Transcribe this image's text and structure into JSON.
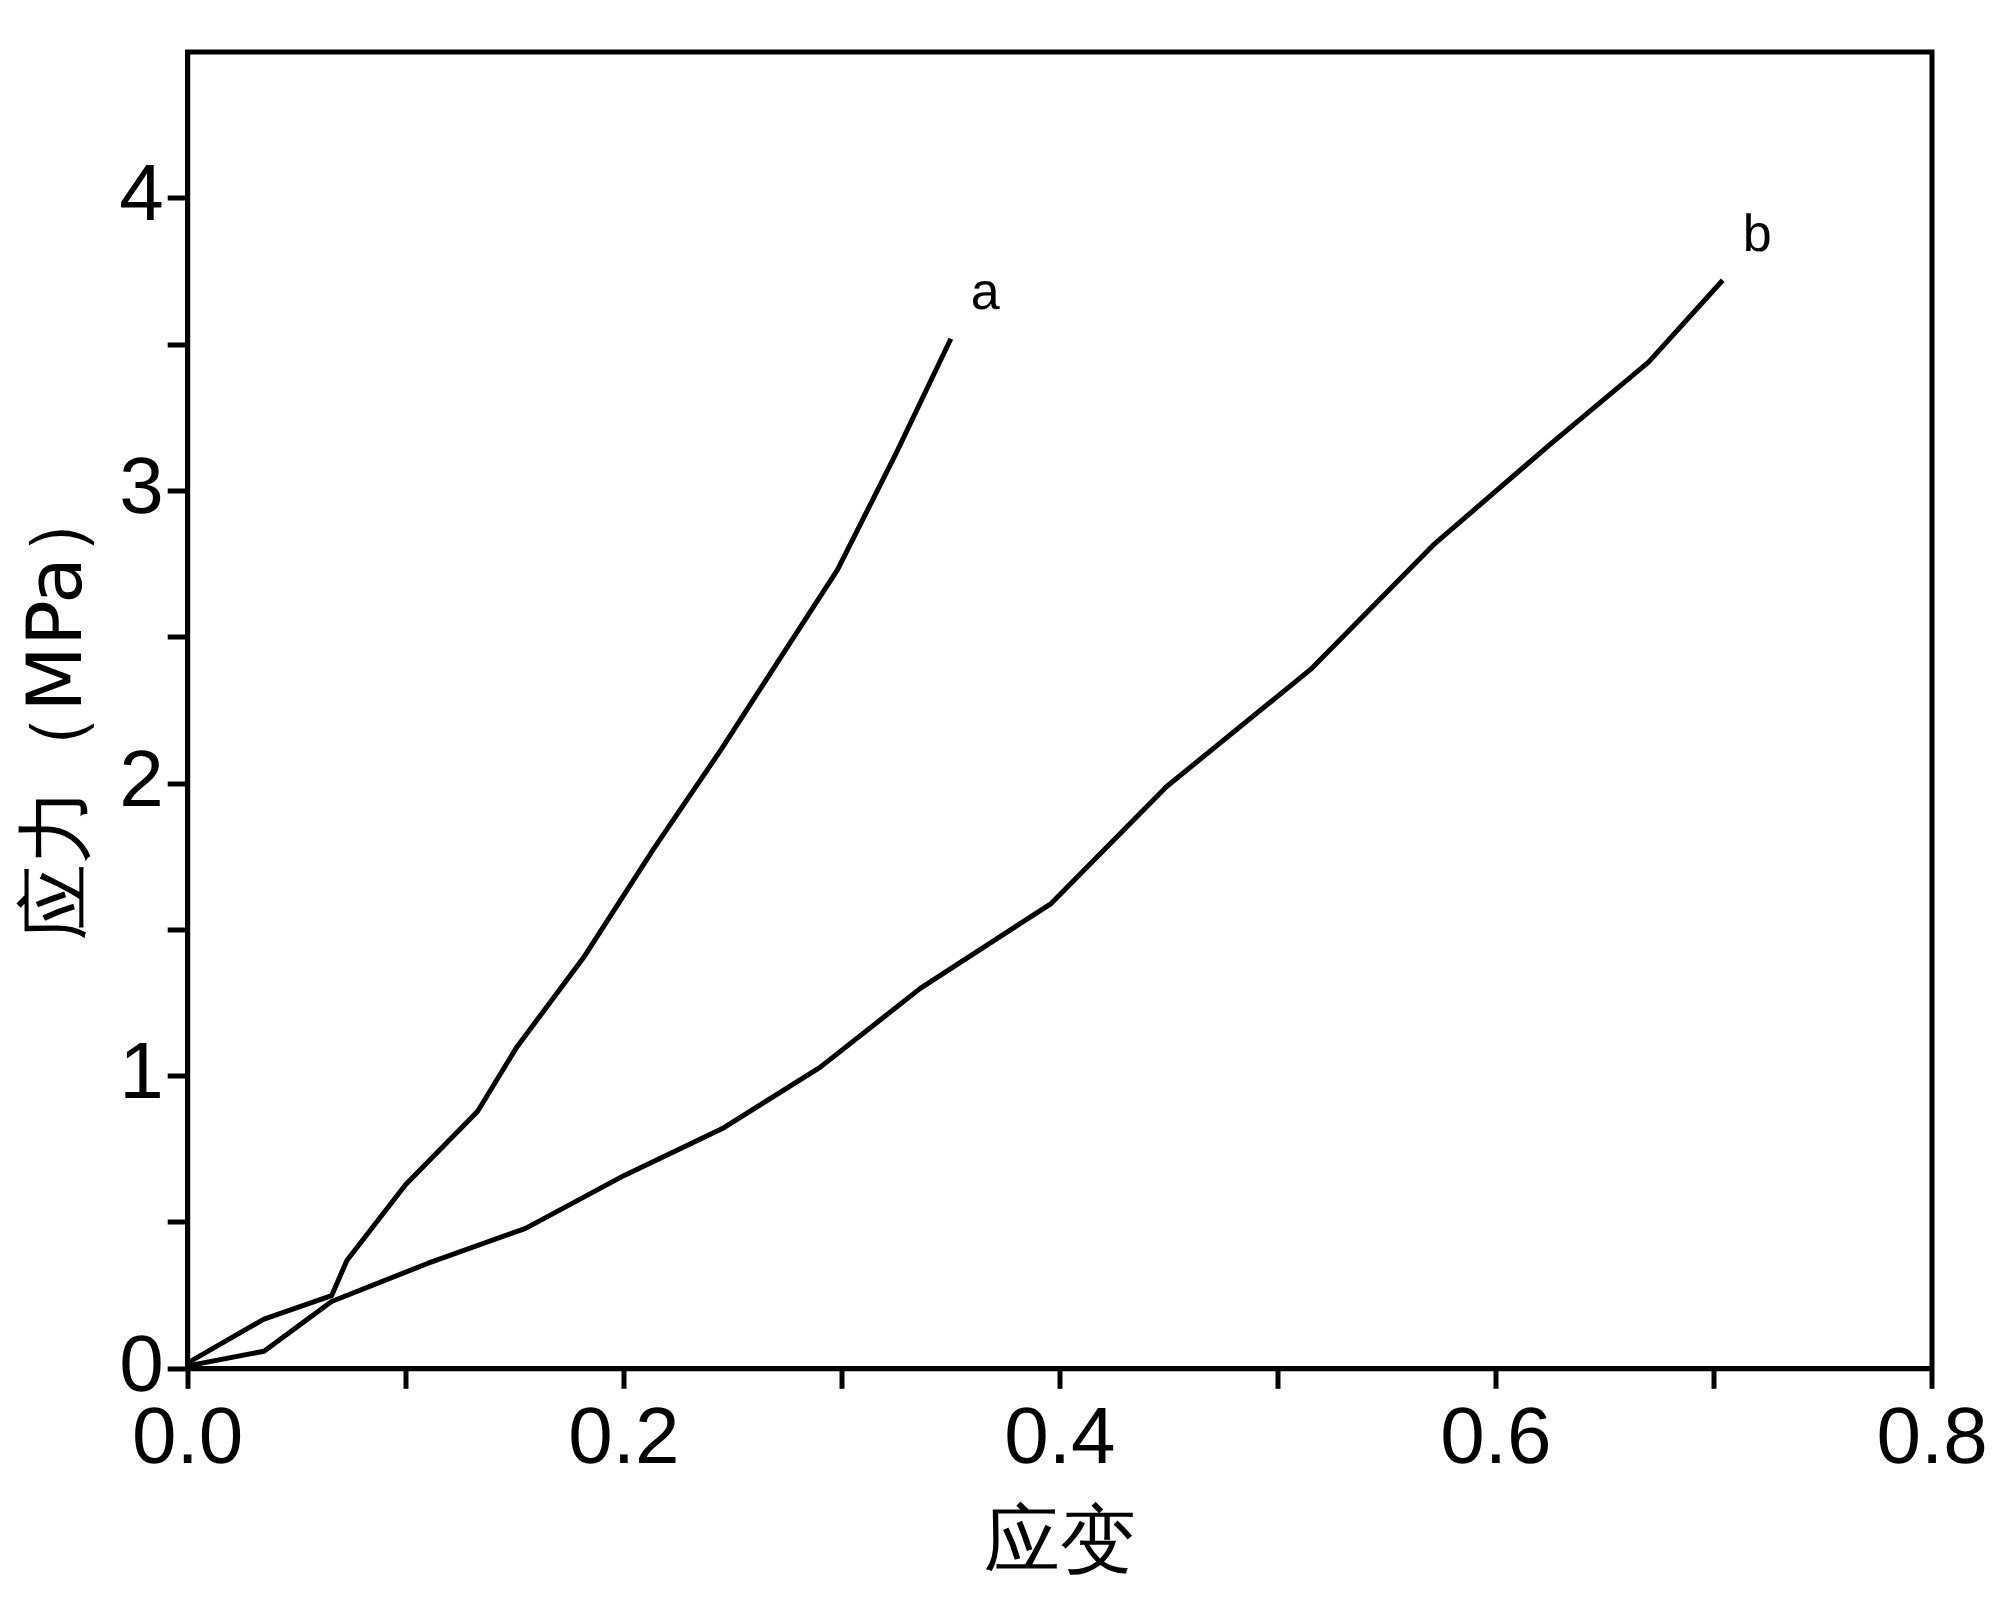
{
  "chart_data": {
    "type": "line",
    "xlabel": "应变",
    "ylabel": "应力（MPa）",
    "xlim": [
      0,
      0.8
    ],
    "ylim": [
      0,
      4.5
    ],
    "xticks": [
      {
        "value": 0,
        "label": "0.0"
      },
      {
        "value": 0.1,
        "label": null
      },
      {
        "value": 0.2,
        "label": "0.2"
      },
      {
        "value": 0.3,
        "label": null
      },
      {
        "value": 0.4,
        "label": "0.4"
      },
      {
        "value": 0.5,
        "label": null
      },
      {
        "value": 0.6,
        "label": "0.6"
      },
      {
        "value": 0.7,
        "label": null
      },
      {
        "value": 0.8,
        "label": "0.8"
      }
    ],
    "yticks": [
      0,
      {
        "value": 0.5,
        "label": null
      },
      1,
      {
        "value": 1.5,
        "label": null
      },
      2,
      {
        "value": 2.5,
        "label": null
      },
      3,
      {
        "value": 3.5,
        "label": null
      },
      4
    ],
    "series": [
      {
        "name": "a",
        "color": "#000000",
        "x": [
          0,
          0.035,
          0.066,
          0.073,
          0.1,
          0.133,
          0.151,
          0.182,
          0.214,
          0.245,
          0.271,
          0.298,
          0.325,
          0.35
        ],
        "values": [
          0.02,
          0.17,
          0.25,
          0.37,
          0.63,
          0.88,
          1.1,
          1.41,
          1.78,
          2.12,
          2.42,
          2.73,
          3.13,
          3.52
        ]
      },
      {
        "name": "b",
        "color": "#000000",
        "x": [
          0,
          0.035,
          0.066,
          0.11,
          0.155,
          0.2,
          0.245,
          0.29,
          0.336,
          0.396,
          0.449,
          0.515,
          0.572,
          0.625,
          0.67,
          0.704
        ],
        "values": [
          0.01,
          0.06,
          0.23,
          0.36,
          0.48,
          0.66,
          0.82,
          1.03,
          1.3,
          1.59,
          1.99,
          2.39,
          2.82,
          3.16,
          3.44,
          3.72
        ]
      }
    ],
    "marker": "none",
    "line_style": "solid",
    "grid": false,
    "legend": false
  }
}
